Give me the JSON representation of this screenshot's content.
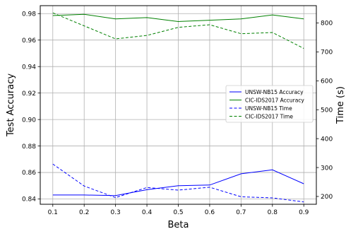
{
  "chart_data": {
    "type": "line",
    "x": [
      0.1,
      0.2,
      0.3,
      0.4,
      0.5,
      0.6,
      0.7,
      0.8,
      0.9
    ],
    "x_ticks": [
      "0.1",
      "0.2",
      "0.3",
      "0.4",
      "0.5",
      "0.6",
      "0.7",
      "0.8",
      "0.9"
    ],
    "xlim": [
      0.06,
      0.94
    ],
    "xlabel": "Beta",
    "ylabel_left": "Test Accuracy",
    "ylabel_right": "Time (s)",
    "ylim_left": [
      0.836,
      0.986
    ],
    "ylim_right": [
      173,
      860
    ],
    "y_ticks_left": [
      "0.84",
      "0.86",
      "0.88",
      "0.90",
      "0.92",
      "0.94",
      "0.96",
      "0.98"
    ],
    "y_ticks_right": [
      "200",
      "300",
      "400",
      "500",
      "600",
      "700",
      "800"
    ],
    "grid": true,
    "legend_position": "center-right",
    "series": [
      {
        "name": "UNSW-NB15 Accuracy",
        "axis": "left",
        "color": "#0000ff",
        "dashed": false,
        "values": [
          0.843,
          0.843,
          0.8425,
          0.847,
          0.85,
          0.8505,
          0.859,
          0.862,
          0.8515
        ]
      },
      {
        "name": "CIC-IDS2017 Accuracy",
        "axis": "left",
        "color": "#008000",
        "dashed": false,
        "values": [
          0.9785,
          0.9795,
          0.976,
          0.977,
          0.974,
          0.975,
          0.976,
          0.979,
          0.976
        ]
      },
      {
        "name": "UNSW-NB15 Time",
        "axis": "right",
        "color": "#0000ff",
        "dashed": true,
        "values": [
          312,
          236,
          196,
          231,
          222,
          232,
          199,
          195,
          181
        ]
      },
      {
        "name": "CIC-IDS2017 Time",
        "axis": "right",
        "color": "#008000",
        "dashed": true,
        "values": [
          835,
          790,
          745,
          757,
          785,
          794,
          763,
          767,
          712
        ]
      }
    ]
  }
}
